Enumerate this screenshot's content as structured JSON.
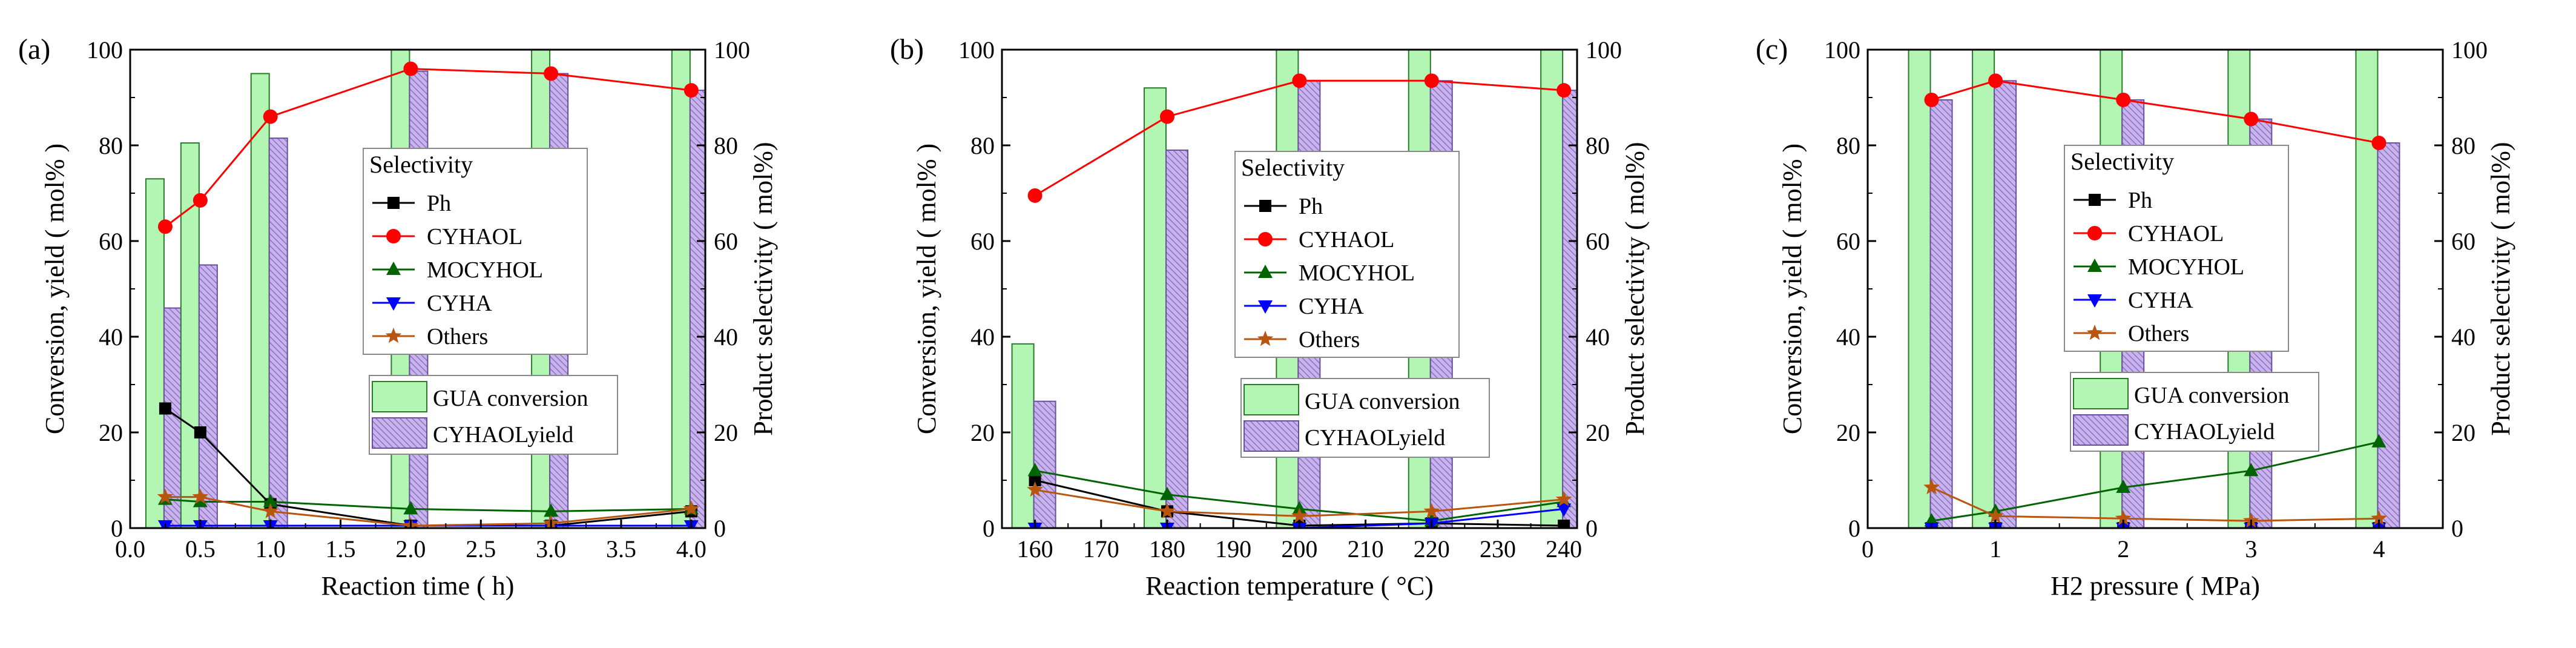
{
  "figure": {
    "colors": {
      "conversion_fill": "#b3f5b3",
      "conversion_stroke": "#2a7a2a",
      "yield_fill": "#c9b3ec",
      "yield_stroke": "#6a4e9e",
      "Ph": "#000000",
      "CYHAOL": "#ff0000",
      "MOCYHOL": "#006400",
      "CYHA": "#0000ff",
      "Others": "#b8560f"
    }
  },
  "chart_data": [
    {
      "type": "bar+line",
      "panel_label": "(a)",
      "xlabel": "Reaction time ( h)",
      "ylabel_left": "Conversion, yield ( mol% )",
      "ylabel_right": "Product selectivity ( mol%)",
      "xlim": [
        0.0,
        4.1
      ],
      "ylim": [
        0,
        100
      ],
      "ylim_right": [
        0,
        100
      ],
      "x_ticks": [
        "0.0",
        "0.5",
        "1.0",
        "1.5",
        "2.0",
        "2.5",
        "3.0",
        "3.5",
        "4.0"
      ],
      "y_ticks": [
        "0",
        "20",
        "40",
        "60",
        "80",
        "100"
      ],
      "y_ticks_right": [
        "0",
        "20",
        "40",
        "60",
        "80",
        "100"
      ],
      "x": [
        0.25,
        0.5,
        1.0,
        2.0,
        3.0,
        4.0
      ],
      "bars": [
        {
          "name": "GUA conversion",
          "values": [
            73,
            80.5,
            95,
            100,
            100,
            100
          ]
        },
        {
          "name": "CYHAOLyield",
          "values": [
            46,
            55,
            81.5,
            95.5,
            95,
            91.5
          ]
        }
      ],
      "series": [
        {
          "name": "Ph",
          "marker": "square",
          "values": [
            25,
            20,
            5,
            0.5,
            0.5,
            3.5
          ]
        },
        {
          "name": "CYHAOL",
          "marker": "circle",
          "values": [
            63,
            68.5,
            86,
            96,
            95,
            91.5
          ]
        },
        {
          "name": "MOCYHOL",
          "marker": "triangle-up",
          "values": [
            6,
            5.5,
            5.5,
            4,
            3.5,
            4
          ]
        },
        {
          "name": "CYHA",
          "marker": "triangle-down",
          "values": [
            0.5,
            0.5,
            0.5,
            0.5,
            0.5,
            0.5
          ]
        },
        {
          "name": "Others",
          "marker": "star",
          "values": [
            6.5,
            6.5,
            3.5,
            0.5,
            1,
            4
          ]
        }
      ],
      "legend": {
        "title": "Selectivity",
        "placement": "center"
      }
    },
    {
      "type": "bar+line",
      "panel_label": "(b)",
      "xlabel": "Reaction temperature ( °C)",
      "ylabel_left": "Conversion, yield ( mol% )",
      "ylabel_right": "Product selectivity ( mol%)",
      "xlim": [
        155,
        242
      ],
      "ylim": [
        0,
        100
      ],
      "ylim_right": [
        0,
        100
      ],
      "x_ticks": [
        "160",
        "170",
        "180",
        "190",
        "200",
        "210",
        "220",
        "230",
        "240"
      ],
      "y_ticks": [
        "0",
        "20",
        "40",
        "60",
        "80",
        "100"
      ],
      "y_ticks_right": [
        "0",
        "20",
        "40",
        "60",
        "80",
        "100"
      ],
      "x": [
        160,
        180,
        200,
        220,
        240
      ],
      "bars": [
        {
          "name": "GUA conversion",
          "values": [
            38.5,
            92,
            100,
            100,
            100
          ]
        },
        {
          "name": "CYHAOLyield",
          "values": [
            26.5,
            79,
            93.5,
            93.5,
            91.5
          ]
        }
      ],
      "series": [
        {
          "name": "Ph",
          "marker": "square",
          "values": [
            10,
            3.5,
            0.5,
            1,
            0.5
          ]
        },
        {
          "name": "CYHAOL",
          "marker": "circle",
          "values": [
            69.5,
            86,
            93.5,
            93.5,
            91.5
          ]
        },
        {
          "name": "MOCYHOL",
          "marker": "triangle-up",
          "values": [
            12,
            7,
            4,
            1.5,
            5.5
          ]
        },
        {
          "name": "CYHA",
          "marker": "triangle-down",
          "values": [
            0,
            0,
            0,
            1,
            4
          ]
        },
        {
          "name": "Others",
          "marker": "star",
          "values": [
            8,
            3.5,
            2.5,
            3.5,
            6
          ]
        }
      ],
      "legend": {
        "title": "Selectivity",
        "placement": "center"
      }
    },
    {
      "type": "bar+line",
      "panel_label": "(c)",
      "xlabel": "H2 pressure ( MPa)",
      "ylabel_left": "Conversion, yield ( mol% )",
      "ylabel_right": "Product selectivity ( mol%)",
      "xlim": [
        0,
        4.5
      ],
      "ylim": [
        0,
        100
      ],
      "ylim_right": [
        0,
        100
      ],
      "x_ticks": [
        "0",
        "1",
        "2",
        "3",
        "4"
      ],
      "y_ticks": [
        "0",
        "20",
        "40",
        "60",
        "80",
        "100"
      ],
      "y_ticks_right": [
        "0",
        "20",
        "40",
        "60",
        "80",
        "100"
      ],
      "x": [
        0.5,
        1,
        2,
        3,
        4
      ],
      "bars": [
        {
          "name": "GUA conversion",
          "values": [
            100,
            100,
            100,
            100,
            100
          ]
        },
        {
          "name": "CYHAOLyield",
          "values": [
            89.5,
            93.5,
            89.5,
            85.5,
            80.5
          ]
        }
      ],
      "series": [
        {
          "name": "Ph",
          "marker": "square",
          "values": [
            0,
            0,
            0,
            0,
            0
          ]
        },
        {
          "name": "CYHAOL",
          "marker": "circle",
          "values": [
            89.5,
            93.5,
            89.5,
            85.5,
            80.5
          ]
        },
        {
          "name": "MOCYHOL",
          "marker": "triangle-up",
          "values": [
            1.5,
            3.5,
            8.5,
            12,
            18
          ]
        },
        {
          "name": "CYHA",
          "marker": "triangle-down",
          "values": [
            0,
            0,
            0,
            0,
            0
          ]
        },
        {
          "name": "Others",
          "marker": "star",
          "values": [
            8.5,
            2.5,
            2,
            1.5,
            2
          ]
        }
      ],
      "legend": {
        "title": "Selectivity",
        "placement": "center"
      }
    }
  ]
}
